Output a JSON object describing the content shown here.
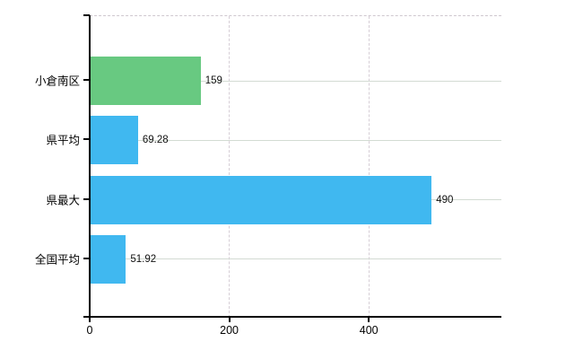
{
  "chart_data": {
    "type": "bar",
    "orientation": "horizontal",
    "title": "",
    "xlabel": "",
    "ylabel": "",
    "categories": [
      "小倉南区",
      "県平均",
      "県最大",
      "全国平均"
    ],
    "values": [
      159,
      69.28,
      490,
      51.92
    ],
    "value_labels": [
      "159",
      "69.28",
      "490",
      "51.92"
    ],
    "bar_colors": [
      "#68c981",
      "#40b8f0",
      "#40b8f0",
      "#40b8f0"
    ],
    "x_ticks": [
      0,
      200,
      400
    ],
    "x_tick_labels": [
      "0",
      "200",
      "400"
    ],
    "xlim": [
      0,
      590
    ],
    "grid": true,
    "legend": "none",
    "gridline_style": {
      "horizontal": "solid",
      "vertical": "dashed",
      "top_border": "dashed"
    }
  },
  "colors": {
    "bar_green": "#68c981",
    "bar_blue": "#40b8f0",
    "axis": "#000000",
    "h_gridline": "#d3dbd3",
    "v_gridline": "#d6ced6",
    "text": "#000000",
    "background": "#ffffff"
  }
}
